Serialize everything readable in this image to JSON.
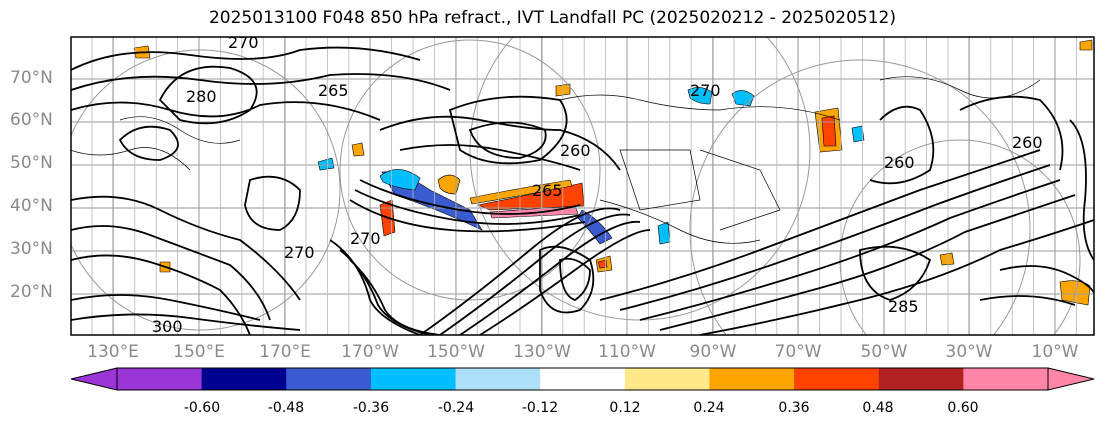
{
  "title": "2025013100 F048 850 hPa refract., IVT Landfall PC (2025020212 - 2025020512)",
  "lat_labels": [
    "70°N",
    "60°N",
    "50°N",
    "40°N",
    "30°N",
    "20°N"
  ],
  "lon_labels": [
    "130°E",
    "150°E",
    "170°E",
    "170°W",
    "150°W",
    "130°W",
    "110°W",
    "90°W",
    "70°W",
    "50°W",
    "30°W",
    "10°W"
  ],
  "contour_labels": [
    "270",
    "280",
    "265",
    "270",
    "260",
    "270",
    "265",
    "260",
    "260",
    "270",
    "300",
    "285"
  ],
  "colorbar": {
    "colors": [
      "#9a35d6",
      "#020290",
      "#3a5cd0",
      "#00bfff",
      "#aee0f8",
      "#ffffff",
      "#ffe98a",
      "#ffa500",
      "#ff4200",
      "#b22222",
      "#ff86a8"
    ],
    "tick_labels": [
      "-0.60",
      "-0.48",
      "-0.36",
      "-0.24",
      "-0.12",
      "0.12",
      "0.24",
      "0.36",
      "0.48",
      "0.60"
    ]
  }
}
